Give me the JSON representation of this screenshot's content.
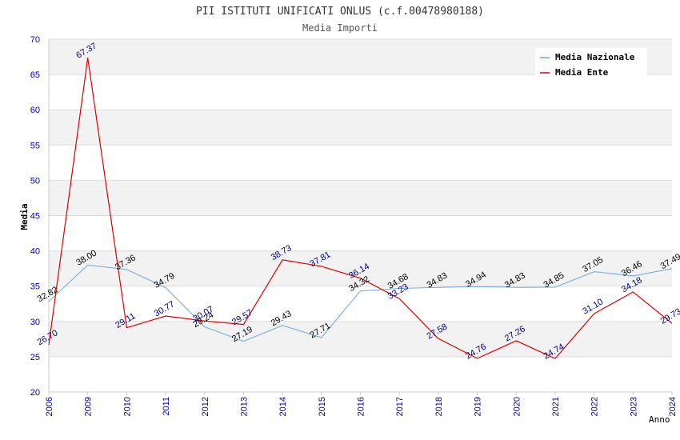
{
  "chart_data": {
    "type": "line",
    "title": "PII ISTITUTI UNIFICATI ONLUS (c.f.00478980188)",
    "subtitle": "Media Importi",
    "xlabel": "Anno",
    "ylabel": "Media",
    "ylim": [
      20,
      70
    ],
    "yticks": [
      20,
      25,
      30,
      35,
      40,
      45,
      50,
      55,
      60,
      65,
      70
    ],
    "grid": true,
    "legend_position": "top-right",
    "categories": [
      "2006",
      "2009",
      "2010",
      "2011",
      "2012",
      "2013",
      "2014",
      "2015",
      "2016",
      "2017",
      "2018",
      "2019",
      "2020",
      "2021",
      "2022",
      "2023",
      "2024"
    ],
    "series": [
      {
        "name": "Media Nazionale",
        "color": "#6aa8e0",
        "values": [
          32.82,
          38.0,
          37.36,
          34.79,
          29.24,
          27.19,
          29.43,
          27.71,
          34.32,
          34.68,
          34.83,
          34.94,
          34.83,
          34.85,
          37.05,
          36.46,
          37.49
        ],
        "labels": [
          "32.82",
          "38.00",
          "37.36",
          "34.79",
          "29.24",
          "27.19",
          "29.43",
          "27.71",
          "34.32",
          "34.68",
          "34.83",
          "34.94",
          "34.83",
          "34.85",
          "37.05",
          "36.46",
          "37.49"
        ]
      },
      {
        "name": "Media Ente",
        "color": "#dd0000",
        "values": [
          26.7,
          67.37,
          29.11,
          30.77,
          30.07,
          29.57,
          38.73,
          37.81,
          36.14,
          33.23,
          27.58,
          24.76,
          27.26,
          24.74,
          31.1,
          34.18,
          29.73
        ],
        "labels": [
          "26.70",
          "67.37",
          "29.11",
          "30.77",
          "30.07",
          "29.57",
          "38.73",
          "37.81",
          "36.14",
          "33.23",
          "27.58",
          "24.76",
          "27.26",
          "24.74",
          "31.10",
          "34.18",
          "29.73"
        ]
      }
    ]
  }
}
